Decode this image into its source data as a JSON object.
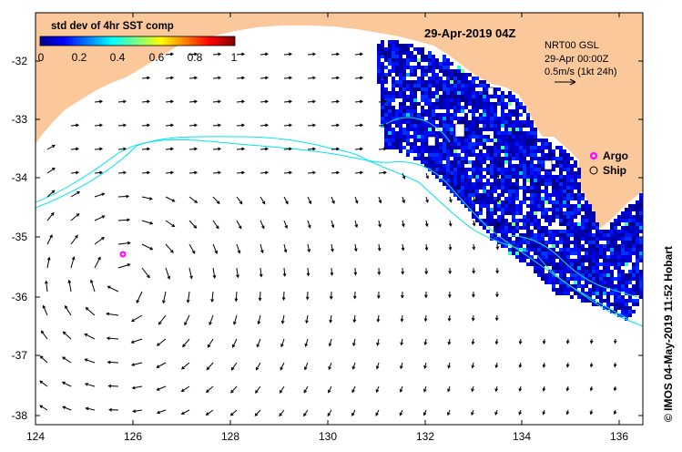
{
  "map": {
    "title": "29-Apr-2019 04Z",
    "lon_range": [
      124,
      136.5
    ],
    "lat_range": [
      -38.1,
      -31.2
    ],
    "x_tick_labels": [
      "124",
      "126",
      "128",
      "130",
      "132",
      "134",
      "136"
    ],
    "y_tick_labels": [
      "-32",
      "-33",
      "-34",
      "-35",
      "-36",
      "-37",
      "-38"
    ],
    "land_color": "#fac89b",
    "contour_color": "#00e5f0"
  },
  "colorbar": {
    "title": "std dev of 4hr SST comp",
    "tick_labels": [
      "0",
      "0.2",
      "0.4",
      "0.6",
      "0.8",
      "1"
    ]
  },
  "info": {
    "line1": "NRT00 GSL",
    "line2": "29-Apr 00:00Z",
    "line3": "0.5m/s (1kt 24h)"
  },
  "legend": {
    "argo_label": "Argo",
    "ship_label": "Ship",
    "argo_color": "#ff00ff"
  },
  "credit": "© IMOS 04-May-2019 11:52 Hobart"
}
